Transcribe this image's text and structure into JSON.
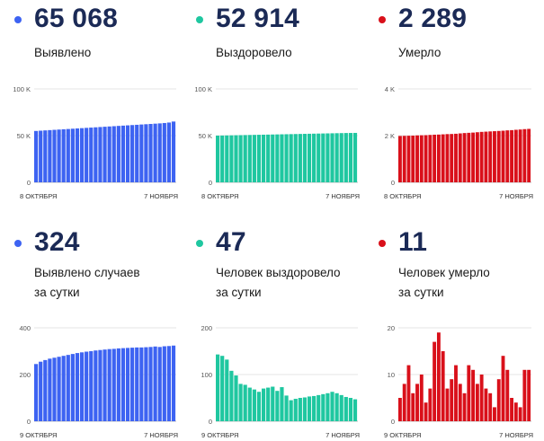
{
  "panels": [
    {
      "id": "p1",
      "value": "65 068",
      "label": [
        "Выявлено"
      ],
      "color": "#3d63f2",
      "chart_data": {
        "type": "bar",
        "ylim": [
          0,
          100000
        ],
        "yticks": [
          "100 K",
          "50 K",
          "0"
        ],
        "x_start_label": "8 ОКТЯБРЯ",
        "x_end_label": "7 НОЯБРЯ",
        "values": [
          55000,
          55300,
          55600,
          55900,
          56200,
          56500,
          56800,
          57100,
          57400,
          57700,
          58000,
          58300,
          58600,
          58900,
          59200,
          59500,
          59800,
          60100,
          60400,
          60700,
          61000,
          61300,
          61600,
          61900,
          62200,
          62500,
          62800,
          63100,
          63500,
          64000,
          65068
        ]
      }
    },
    {
      "id": "p2",
      "value": "52 914",
      "label": [
        "Выздоровело"
      ],
      "color": "#1fc7a0",
      "chart_data": {
        "type": "bar",
        "ylim": [
          0,
          100000
        ],
        "yticks": [
          "100 K",
          "50 K",
          "0"
        ],
        "x_start_label": "8 ОКТЯБРЯ",
        "x_end_label": "7 НОЯБРЯ",
        "values": [
          50000,
          50100,
          50200,
          50300,
          50400,
          50500,
          50600,
          50700,
          50800,
          50900,
          51000,
          51100,
          51200,
          51300,
          51400,
          51500,
          51600,
          51700,
          51800,
          51900,
          52000,
          52100,
          52200,
          52300,
          52400,
          52500,
          52600,
          52700,
          52800,
          52860,
          52914
        ]
      }
    },
    {
      "id": "p3",
      "value": "2 289",
      "label": [
        "Умерло"
      ],
      "color": "#d9101a",
      "chart_data": {
        "type": "bar",
        "ylim": [
          0,
          4000
        ],
        "yticks": [
          "4 K",
          "2 K",
          "0"
        ],
        "x_start_label": "8 ОКТЯБРЯ",
        "x_end_label": "7 НОЯБРЯ",
        "values": [
          1985,
          1990,
          1995,
          2000,
          2010,
          2015,
          2020,
          2030,
          2040,
          2045,
          2055,
          2065,
          2070,
          2080,
          2095,
          2110,
          2120,
          2130,
          2145,
          2160,
          2170,
          2180,
          2190,
          2200,
          2210,
          2225,
          2235,
          2250,
          2262,
          2278,
          2289
        ]
      }
    },
    {
      "id": "p4",
      "value": "324",
      "label": [
        "Выявлено случаев",
        "за сутки"
      ],
      "color": "#3d63f2",
      "chart_data": {
        "type": "bar",
        "ylim": [
          0,
          400
        ],
        "yticks": [
          "400",
          "200",
          "0"
        ],
        "x_start_label": "9 ОКТЯБРЯ",
        "x_end_label": "7 НОЯБРЯ",
        "values": [
          245,
          255,
          262,
          268,
          272,
          276,
          280,
          284,
          288,
          292,
          295,
          298,
          300,
          303,
          305,
          307,
          309,
          310,
          312,
          313,
          314,
          315,
          316,
          316,
          317,
          318,
          320,
          318,
          321,
          322,
          324
        ]
      }
    },
    {
      "id": "p5",
      "value": "47",
      "label": [
        "Человек выздоровело",
        "за сутки"
      ],
      "color": "#1fc7a0",
      "chart_data": {
        "type": "bar",
        "ylim": [
          0,
          200
        ],
        "yticks": [
          "200",
          "100",
          "0"
        ],
        "x_start_label": "9 ОКТЯБРЯ",
        "x_end_label": "7 НОЯБРЯ",
        "values": [
          143,
          140,
          132,
          108,
          98,
          80,
          78,
          72,
          68,
          63,
          70,
          72,
          74,
          65,
          73,
          55,
          45,
          48,
          50,
          51,
          53,
          54,
          56,
          58,
          60,
          63,
          60,
          56,
          52,
          50,
          47
        ]
      }
    },
    {
      "id": "p6",
      "value": "11",
      "label": [
        "Человек умерло",
        "за сутки"
      ],
      "color": "#d9101a",
      "chart_data": {
        "type": "bar",
        "ylim": [
          0,
          20
        ],
        "yticks": [
          "20",
          "10",
          "0"
        ],
        "x_start_label": "9 ОКТЯБРЯ",
        "x_end_label": "7 НОЯБРЯ",
        "values": [
          5,
          8,
          12,
          6,
          8,
          10,
          4,
          7,
          17,
          19,
          15,
          7,
          9,
          12,
          8,
          6,
          12,
          11,
          8,
          10,
          7,
          6,
          3,
          9,
          14,
          11,
          5,
          4,
          3,
          11,
          11
        ]
      }
    }
  ]
}
